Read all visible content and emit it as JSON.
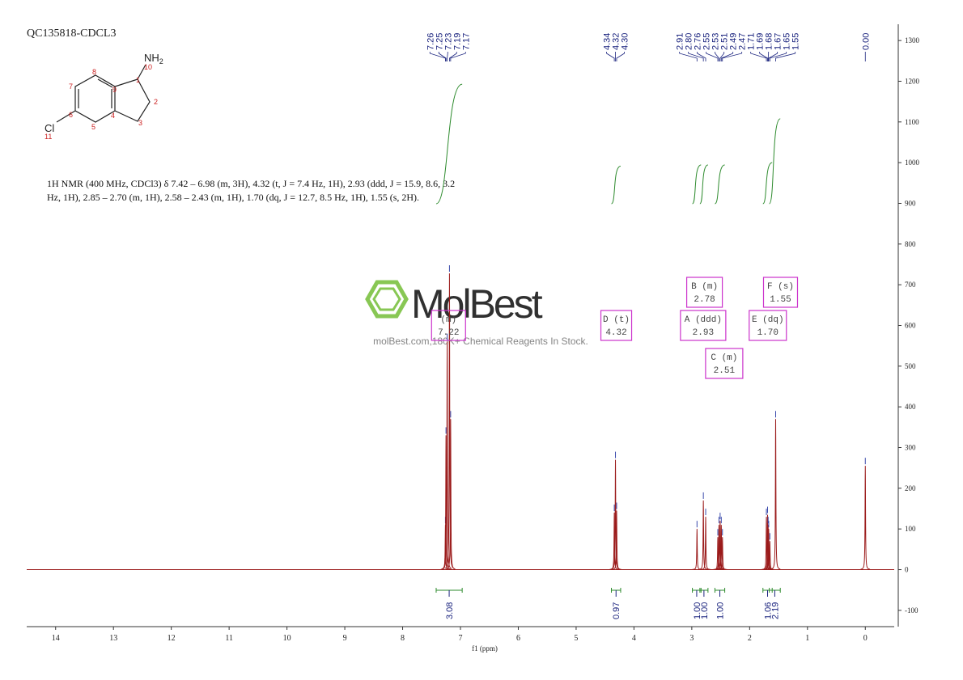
{
  "title": "QC135818-CDCL3",
  "structure": {
    "atom_numbers": [
      "1",
      "2",
      "3",
      "4",
      "5",
      "6",
      "7",
      "8",
      "9",
      "10",
      "11"
    ],
    "amine": "NH",
    "amine_sub": "2",
    "chlorine": "Cl"
  },
  "description": [
    "1H NMR (400 MHz, CDCl3) δ 7.42 – 6.98 (m, 3H), 4.32 (t, J = 7.4 Hz, 1H), 2.93 (ddd, J = 15.9, 8.6, 3.2",
    "Hz, 1H), 2.85 – 2.70 (m, 1H), 2.58 – 2.43 (m, 1H), 1.70 (dq, J = 12.7, 8.5 Hz, 1H), 1.55 (s, 2H)."
  ],
  "watermark": {
    "brand": "MolBest",
    "tagline": "molBest.com,180K+ Chemical Reagents In Stock."
  },
  "chart_data": {
    "type": "nmr",
    "xlabel": "f1 (ppm)",
    "xlim": [
      14.5,
      -0.5
    ],
    "xticks": [
      14,
      13,
      12,
      11,
      10,
      9,
      8,
      7,
      6,
      5,
      4,
      3,
      2,
      1,
      0
    ],
    "ylim": [
      -140,
      1340
    ],
    "yticks": [
      -100,
      0,
      100,
      200,
      300,
      400,
      500,
      600,
      700,
      800,
      900,
      1000,
      1100,
      1200,
      1300
    ],
    "color": "#9b1b1b",
    "integral_color": "#2e8b2e",
    "label_color": "#1a237e",
    "box_color": "#cc33cc",
    "peaks": {
      "ppm": [
        7.26,
        7.25,
        7.23,
        7.19,
        7.17,
        4.34,
        4.32,
        4.3,
        2.91,
        2.8,
        2.76,
        2.55,
        2.53,
        2.51,
        2.49,
        2.47,
        1.71,
        1.69,
        1.68,
        1.67,
        1.65,
        1.55,
        0.0
      ],
      "heights": [
        110,
        330,
        560,
        728,
        370,
        140,
        270,
        145,
        100,
        170,
        130,
        80,
        110,
        120,
        110,
        80,
        130,
        135,
        110,
        100,
        70,
        370,
        255
      ],
      "labels": [
        "7.26",
        "7.25",
        "7.23",
        "7.19",
        "7.17",
        "4.34",
        "4.32",
        "4.30",
        "2.91",
        "2.80",
        "2.76",
        "2.55",
        "2.53",
        "2.51",
        "2.49",
        "2.47",
        "1.71",
        "1.69",
        "1.68",
        "1.67",
        "1.65",
        "1.55",
        "0.00"
      ]
    },
    "integrals": {
      "from": [
        7.42,
        4.39,
        2.99,
        2.86,
        2.6,
        1.77,
        1.66
      ],
      "to": [
        6.97,
        4.23,
        2.84,
        2.72,
        2.43,
        1.61,
        1.47
      ],
      "values": [
        3.08,
        0.97,
        1.0,
        1.0,
        1.0,
        1.06,
        2.19
      ],
      "value_labels": [
        "3.08",
        "0.97",
        "1.00",
        "1.00",
        "1.00",
        "1.06",
        "2.19"
      ]
    },
    "multiplets": {
      "names": [
        "(m)",
        "D (t)",
        "A (ddd)",
        "B (m)",
        "C (m)",
        "E (dq)",
        "F (s)"
      ],
      "shifts": [
        7.22,
        4.32,
        2.93,
        2.78,
        2.51,
        1.7,
        1.55
      ],
      "shift_labels": [
        "7.22",
        "4.32",
        "2.93",
        "2.78",
        "2.51",
        "1.70",
        "1.55"
      ]
    }
  }
}
